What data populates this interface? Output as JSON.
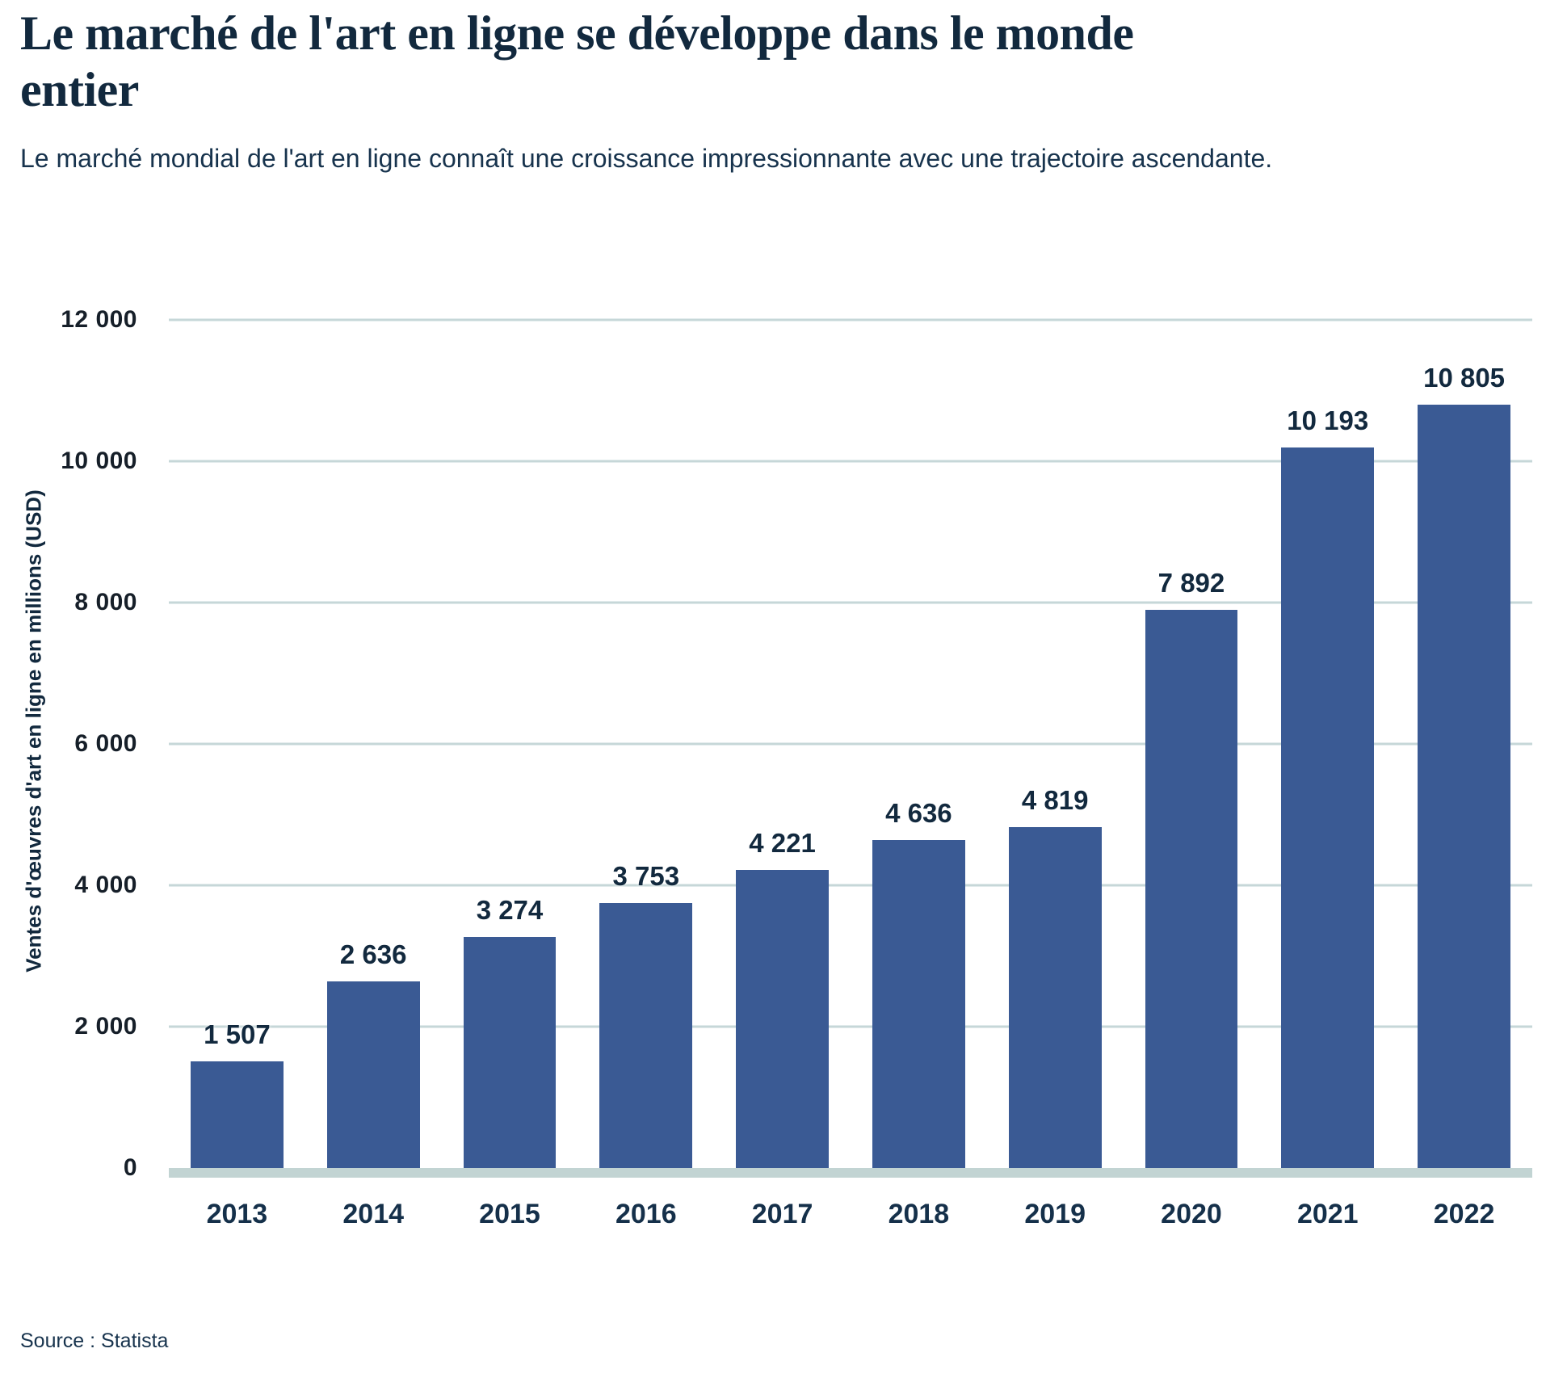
{
  "header": {
    "title_lines": [
      "Le marché de l'art en ligne se développe dans le monde",
      "entier"
    ],
    "subtitle": "Le marché mondial de l'art en ligne connaît une croissance impressionnante avec une trajectoire ascendante."
  },
  "chart_data": {
    "type": "bar",
    "title": "Le marché de l'art en ligne se développe dans le monde entier",
    "categories": [
      "2013",
      "2014",
      "2015",
      "2016",
      "2017",
      "2018",
      "2019",
      "2020",
      "2021",
      "2022"
    ],
    "values": [
      1507,
      2636,
      3274,
      3753,
      4221,
      4636,
      4819,
      7892,
      10193,
      10805
    ],
    "value_labels": [
      "1 507",
      "2 636",
      "3 274",
      "3 753",
      "4 221",
      "4 636",
      "4 819",
      "7 892",
      "10 193",
      "10 805"
    ],
    "xlabel": "",
    "ylabel": "Ventes d'œuvres d'art en ligne en millions (USD)",
    "ylim": [
      0,
      12000
    ],
    "yticks": [
      0,
      2000,
      4000,
      6000,
      8000,
      10000,
      12000
    ],
    "ytick_labels": [
      "0",
      "2 000",
      "4 000",
      "6 000",
      "8 000",
      "10 000",
      "12 000"
    ],
    "grid": "horizontal",
    "legend": "none",
    "bar_color": "#3a5a94",
    "gridline_color": "#c6d7d8",
    "baseline_color": "#c2d4d3",
    "label_color": "#12293e"
  },
  "footer": {
    "source": "Source : Statista"
  }
}
